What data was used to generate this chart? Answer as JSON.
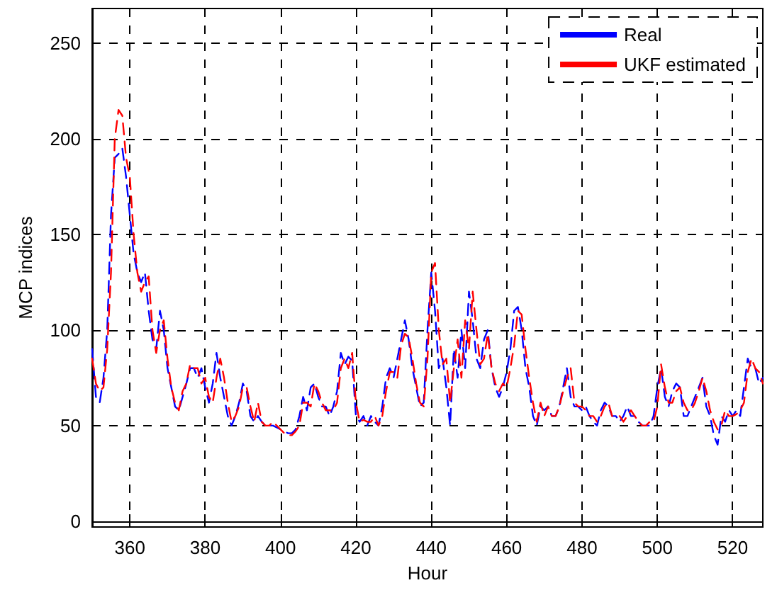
{
  "chart_data": {
    "type": "line",
    "xlabel": "Hour",
    "ylabel": "MCP indices",
    "x": [
      350,
      351,
      352,
      353,
      354,
      355,
      356,
      357,
      358,
      359,
      360,
      361,
      362,
      363,
      364,
      365,
      366,
      367,
      368,
      369,
      370,
      371,
      372,
      373,
      374,
      375,
      376,
      377,
      378,
      379,
      380,
      381,
      382,
      383,
      384,
      385,
      386,
      387,
      388,
      389,
      390,
      391,
      392,
      393,
      394,
      395,
      396,
      397,
      398,
      399,
      400,
      401,
      402,
      403,
      404,
      405,
      406,
      407,
      408,
      409,
      410,
      411,
      412,
      413,
      414,
      415,
      416,
      417,
      418,
      419,
      420,
      421,
      422,
      423,
      424,
      425,
      426,
      427,
      428,
      429,
      430,
      431,
      432,
      433,
      434,
      435,
      436,
      437,
      438,
      439,
      440,
      441,
      442,
      443,
      444,
      445,
      446,
      447,
      448,
      449,
      450,
      451,
      452,
      453,
      454,
      455,
      456,
      457,
      458,
      459,
      460,
      461,
      462,
      463,
      464,
      465,
      466,
      467,
      468,
      469,
      470,
      471,
      472,
      473,
      474,
      475,
      476,
      477,
      478,
      479,
      480,
      481,
      482,
      483,
      484,
      485,
      486,
      487,
      488,
      489,
      490,
      491,
      492,
      493,
      494,
      495,
      496,
      497,
      498,
      499,
      500,
      501,
      502,
      503,
      504,
      505,
      506,
      507,
      508,
      509,
      510,
      511,
      512,
      513,
      514,
      515,
      516,
      517,
      518,
      519,
      520,
      521,
      522,
      523,
      524,
      525,
      526,
      527,
      528
    ],
    "series": [
      {
        "name": "Real",
        "color": "#0000ff",
        "values": [
          90,
          65,
          62,
          75,
          100,
          160,
          190,
          192,
          195,
          180,
          160,
          140,
          130,
          125,
          130,
          110,
          95,
          90,
          110,
          100,
          80,
          70,
          60,
          58,
          65,
          72,
          80,
          80,
          75,
          80,
          70,
          62,
          72,
          88,
          75,
          65,
          55,
          50,
          55,
          62,
          72,
          68,
          55,
          52,
          55,
          52,
          50,
          50,
          50,
          49,
          48,
          47,
          46,
          46,
          48,
          55,
          65,
          58,
          70,
          72,
          65,
          60,
          60,
          55,
          60,
          68,
          88,
          82,
          86,
          84,
          55,
          52,
          55,
          50,
          55,
          52,
          50,
          60,
          75,
          80,
          75,
          85,
          95,
          105,
          95,
          80,
          70,
          60,
          62,
          100,
          130,
          110,
          80,
          85,
          70,
          50,
          90,
          75,
          100,
          80,
          120,
          105,
          85,
          80,
          95,
          100,
          80,
          70,
          65,
          70,
          78,
          90,
          110,
          112,
          100,
          80,
          70,
          55,
          50,
          60,
          58,
          60,
          55,
          55,
          60,
          70,
          80,
          65,
          60,
          60,
          58,
          60,
          55,
          52,
          50,
          58,
          62,
          60,
          55,
          55,
          52,
          55,
          60,
          55,
          55,
          52,
          50,
          50,
          50,
          55,
          70,
          80,
          65,
          60,
          68,
          72,
          70,
          55,
          55,
          60,
          65,
          70,
          75,
          60,
          55,
          45,
          40,
          55,
          52,
          58,
          55,
          58,
          55,
          70,
          85,
          80,
          80,
          72,
          75
        ]
      },
      {
        "name": "UKF estimated",
        "color": "#ff0000",
        "values": [
          85,
          72,
          68,
          70,
          90,
          130,
          200,
          215,
          212,
          190,
          180,
          150,
          130,
          120,
          125,
          128,
          100,
          88,
          100,
          105,
          85,
          70,
          62,
          58,
          68,
          72,
          82,
          80,
          80,
          72,
          75,
          65,
          62,
          75,
          85,
          75,
          62,
          52,
          55,
          60,
          70,
          70,
          60,
          52,
          62,
          52,
          50,
          50,
          52,
          50,
          48,
          46,
          45,
          45,
          47,
          50,
          62,
          62,
          60,
          72,
          68,
          62,
          58,
          58,
          58,
          62,
          80,
          85,
          80,
          88,
          62,
          52,
          53,
          52,
          52,
          55,
          50,
          55,
          68,
          78,
          78,
          75,
          92,
          98,
          96,
          85,
          72,
          62,
          60,
          85,
          130,
          135,
          100,
          82,
          85,
          62,
          80,
          95,
          75,
          105,
          90,
          120,
          100,
          82,
          85,
          98,
          80,
          72,
          68,
          72,
          70,
          80,
          92,
          110,
          108,
          90,
          75,
          62,
          52,
          62,
          55,
          60,
          55,
          55,
          60,
          68,
          75,
          80,
          62,
          60,
          60,
          58,
          55,
          55,
          52,
          55,
          60,
          62,
          55,
          55,
          55,
          52,
          55,
          58,
          55,
          52,
          50,
          50,
          52,
          52,
          60,
          82,
          70,
          62,
          62,
          68,
          70,
          62,
          58,
          58,
          62,
          68,
          75,
          68,
          58,
          52,
          48,
          50,
          58,
          55,
          55,
          56,
          58,
          62,
          78,
          85,
          80,
          78,
          72
        ]
      }
    ],
    "xlim": [
      350,
      528
    ],
    "xticks": [
      360,
      380,
      400,
      420,
      440,
      460,
      480,
      500,
      520
    ],
    "ylim": [
      -3,
      268
    ],
    "yticks": [
      0,
      50,
      100,
      150,
      200,
      250
    ],
    "grid": true,
    "legend": "top right",
    "line_style": "dashed",
    "marker": "none"
  }
}
